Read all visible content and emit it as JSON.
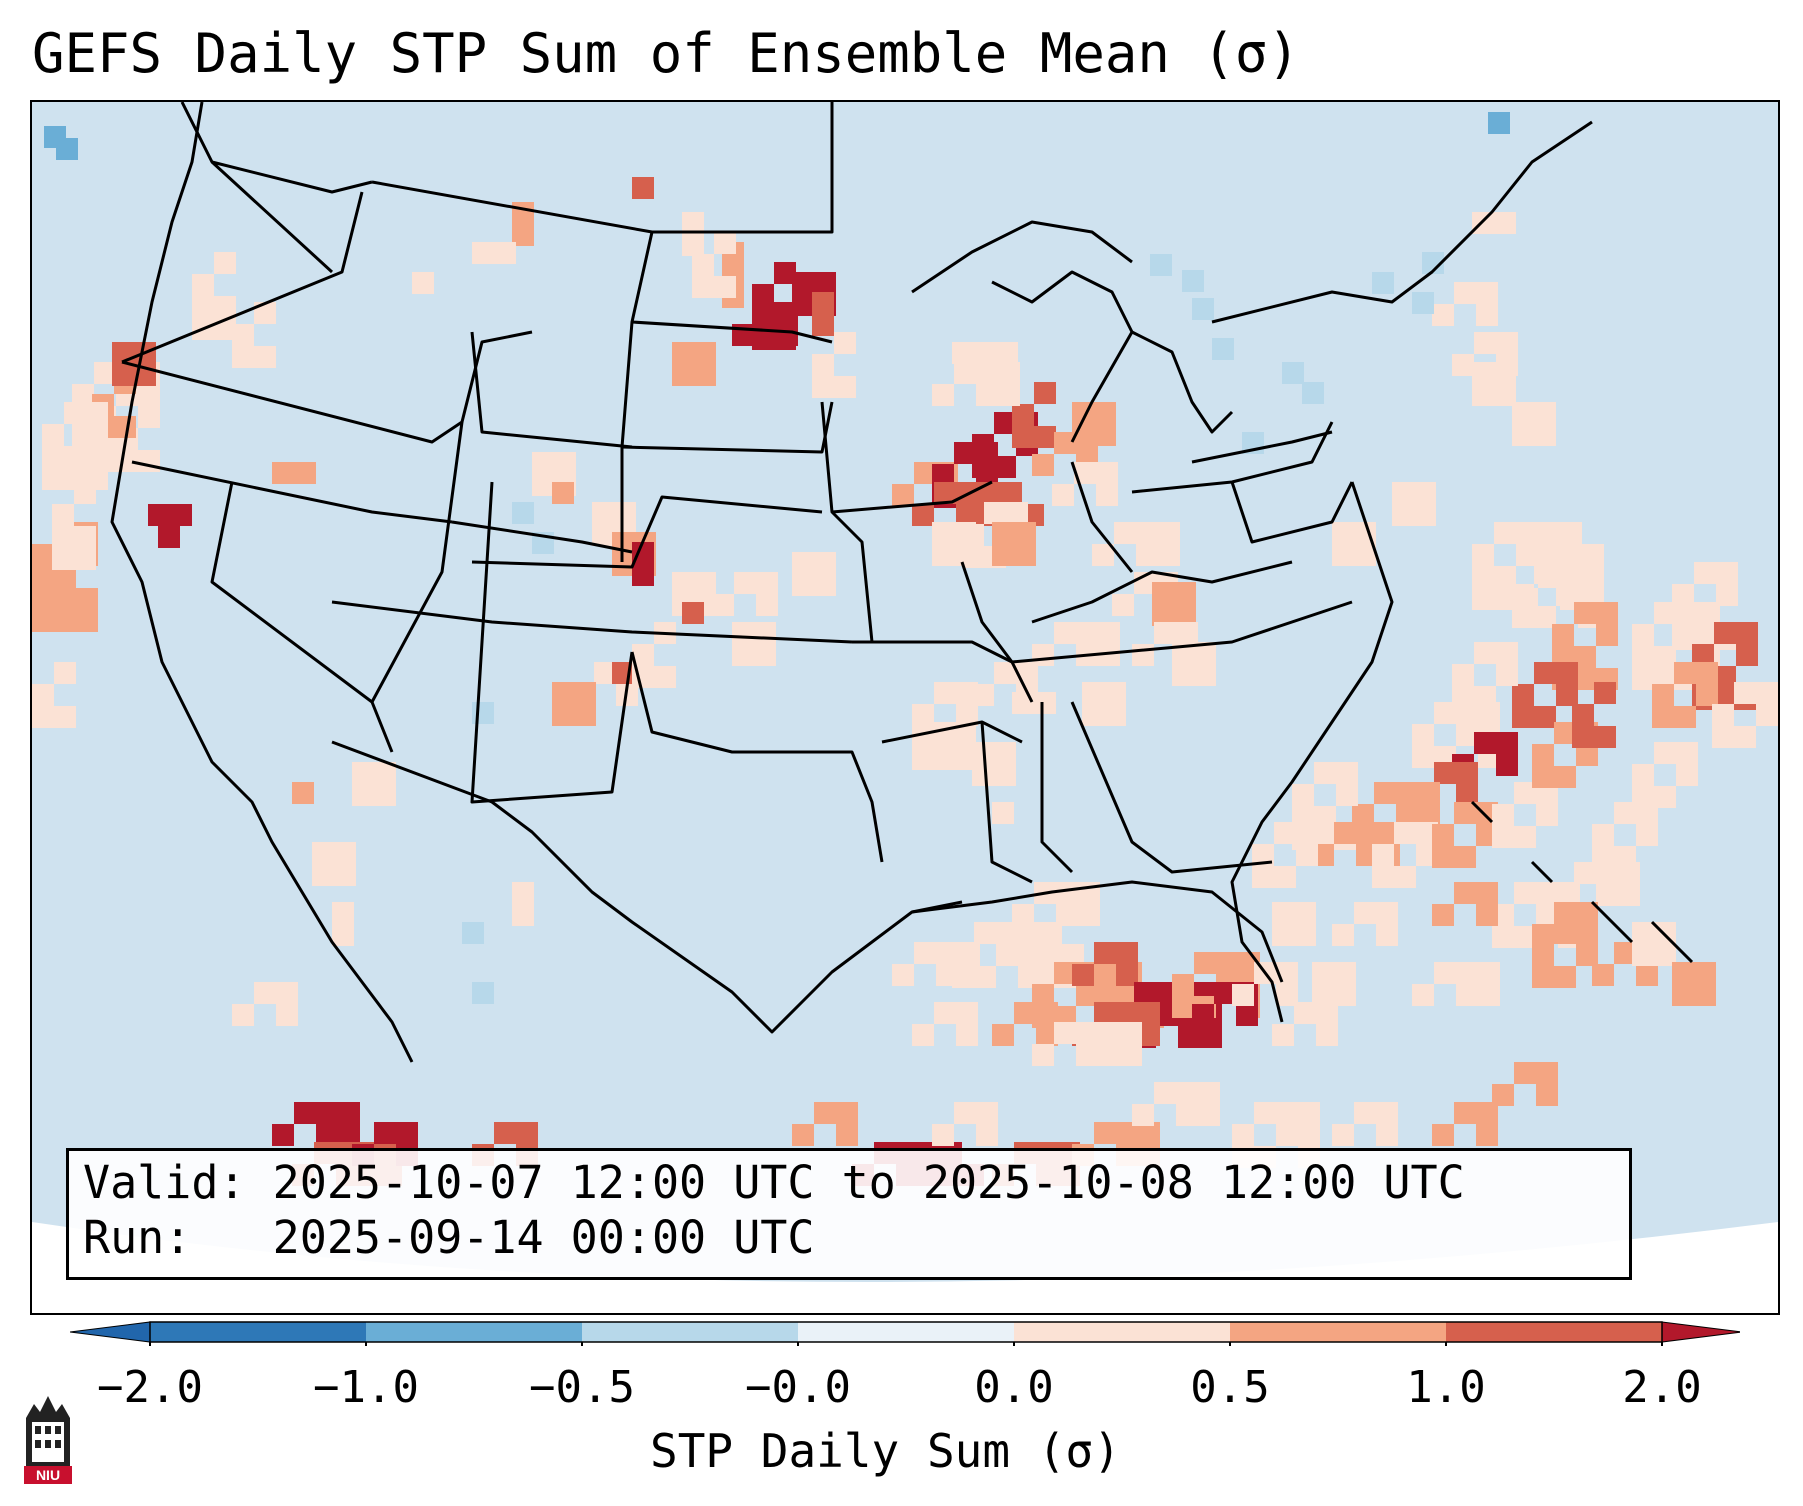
{
  "title": "GEFS Daily STP Sum of Ensemble Mean (σ)",
  "info": {
    "valid": "Valid: 2025-10-07 12:00 UTC to 2025-10-08 12:00 UTC",
    "run": "Run:   2025-09-14 00:00 UTC"
  },
  "colorbar": {
    "label": "STP Daily Sum (σ)",
    "ticks": [
      "−2.0",
      "−1.0",
      "−0.5",
      "−0.0",
      "0.0",
      "0.5",
      "1.0",
      "2.0"
    ],
    "colors": [
      "#2e78b7",
      "#6aaed6",
      "#b7d8ea",
      "#eaf2f8",
      "#fbe2d5",
      "#f4a582",
      "#d6604d",
      "#b2182b"
    ],
    "extend_min_color": "#2166ac",
    "extend_max_color": "#b2182b"
  },
  "map": {
    "ocean_color": "#cfe2ef",
    "outside_color": "#ffffff",
    "border_color": "#000000"
  },
  "logo": {
    "text": "NIU"
  }
}
